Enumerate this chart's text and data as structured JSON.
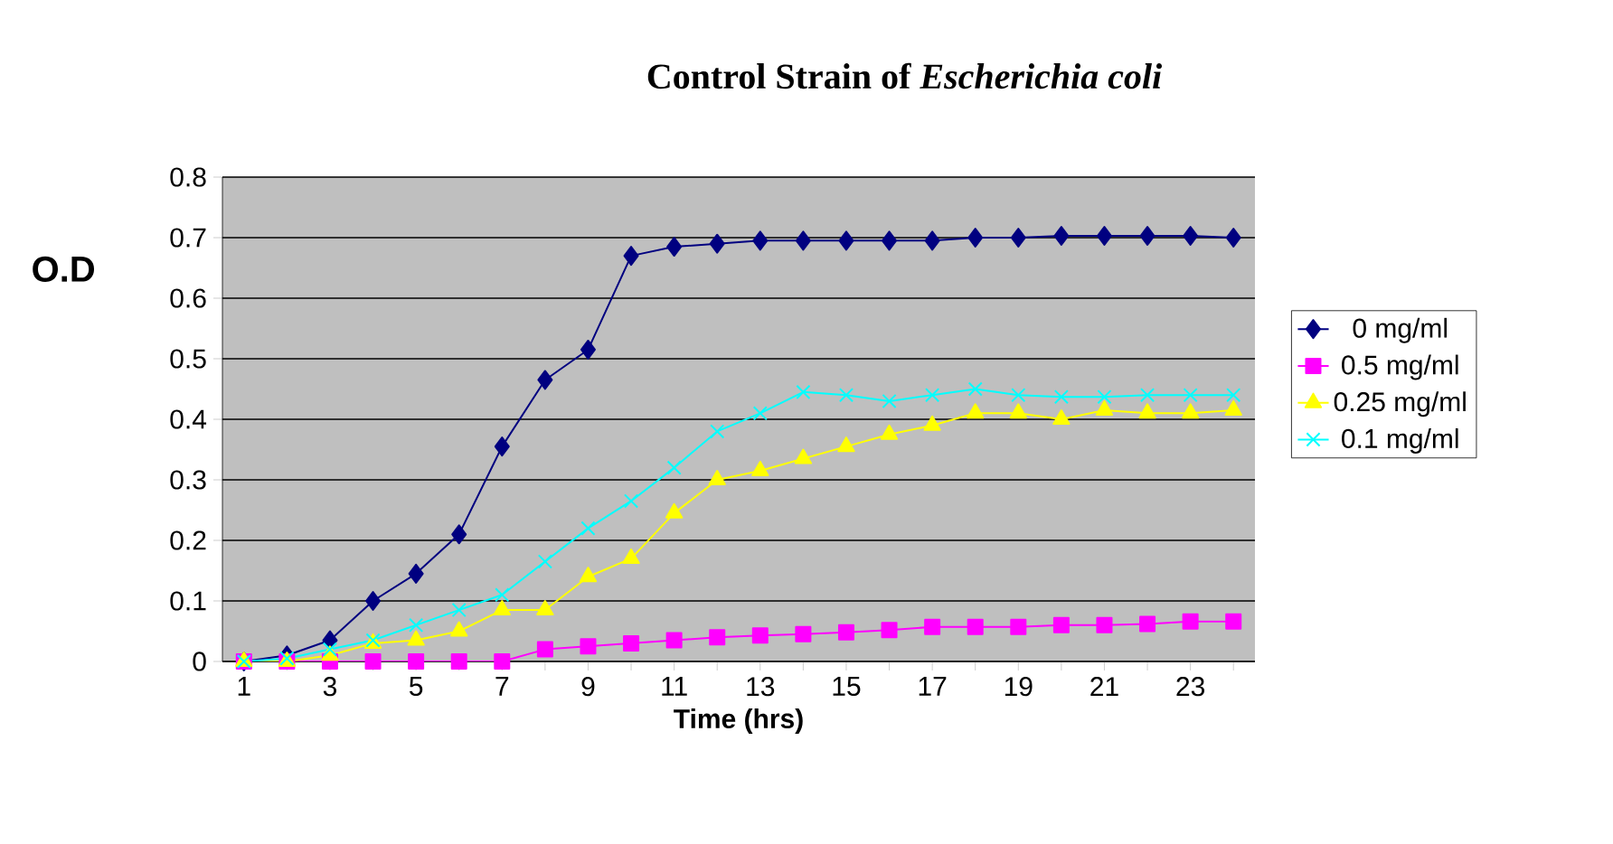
{
  "chart_data": {
    "type": "line",
    "title": "Control Strain of *Escherichia coli*",
    "xlabel": "Time (hrs)",
    "ylabel": "O.D",
    "categories": [
      "1",
      null,
      "3",
      null,
      "5",
      null,
      "7",
      null,
      "9",
      null,
      "11",
      null,
      "13",
      null,
      "15",
      null,
      "17",
      null,
      "19",
      null,
      "21",
      null,
      "23",
      null
    ],
    "series": [
      {
        "name": "0 mg/ml",
        "color": "#000080",
        "marker": "diamond",
        "values": [
          0,
          0.01,
          0.035,
          0.1,
          0.145,
          0.21,
          0.355,
          0.465,
          0.515,
          0.67,
          0.685,
          0.69,
          0.695,
          0.695,
          0.695,
          0.695,
          0.695,
          0.7,
          0.7,
          0.703,
          0.703,
          0.703,
          0.703,
          0.7
        ]
      },
      {
        "name": "0.5 mg/ml",
        "color": "#ff00ff",
        "marker": "square",
        "values": [
          0,
          0,
          0,
          0,
          0,
          0,
          0,
          0.02,
          0.025,
          0.03,
          0.035,
          0.04,
          0.043,
          0.045,
          0.048,
          0.052,
          0.057,
          0.057,
          0.057,
          0.06,
          0.06,
          0.062,
          0.066,
          0.066
        ]
      },
      {
        "name": "0.25 mg/ml",
        "color": "#ffff00",
        "marker": "triangle",
        "values": [
          0,
          0,
          0.01,
          0.03,
          0.035,
          0.05,
          0.085,
          0.085,
          0.14,
          0.17,
          0.245,
          0.3,
          0.315,
          0.335,
          0.355,
          0.375,
          0.39,
          0.41,
          0.41,
          0.4,
          0.415,
          0.41,
          0.41,
          0.415
        ]
      },
      {
        "name": "0.1 mg/ml",
        "color": "#00ffff",
        "marker": "cross",
        "values": [
          0,
          0.005,
          0.02,
          0.035,
          0.06,
          0.085,
          0.11,
          0.165,
          0.22,
          0.265,
          0.32,
          0.38,
          0.41,
          0.445,
          0.44,
          0.43,
          0.44,
          0.45,
          0.44,
          0.437,
          0.437,
          0.44,
          0.44,
          0.44
        ]
      }
    ],
    "ylim": [
      0,
      0.8
    ],
    "yticks": [
      0,
      0.1,
      0.2,
      0.3,
      0.4,
      0.5,
      0.6,
      0.7,
      0.8
    ],
    "grid": "y",
    "legend": "right"
  }
}
